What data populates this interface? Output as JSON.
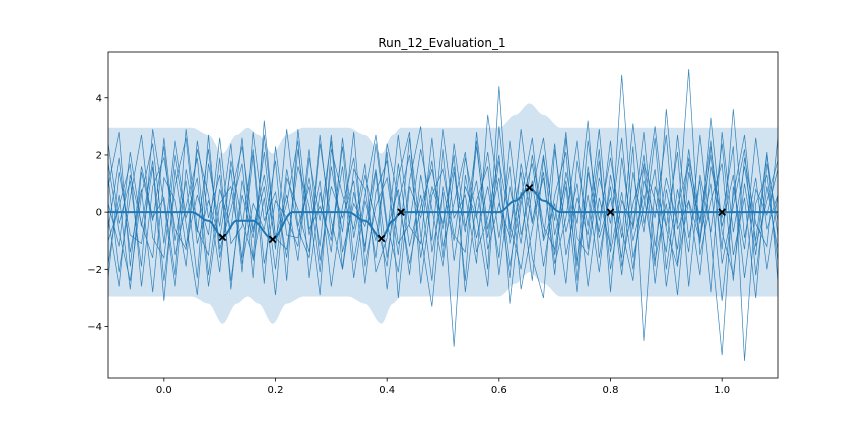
{
  "chart_data": {
    "type": "line",
    "title": "Run_12_Evaluation_1",
    "xlabel": "",
    "ylabel": "",
    "xlim": [
      -0.1,
      1.1
    ],
    "ylim": [
      -5.8,
      5.6
    ],
    "grid": false,
    "legend": "none",
    "x_ticks": [
      "0.0",
      "0.2",
      "0.4",
      "0.6",
      "0.8",
      "1.0"
    ],
    "y_ticks": [
      "4",
      "2",
      "0",
      "−2",
      "−4"
    ],
    "colors": {
      "mean": "#1f77b4",
      "samples": "#1f77b4",
      "band": "#c6dbec",
      "observations": "#000000"
    },
    "observations": [
      {
        "x": 0.105,
        "y": -0.88
      },
      {
        "x": 0.195,
        "y": -0.95
      },
      {
        "x": 0.39,
        "y": -0.92
      },
      {
        "x": 0.425,
        "y": 0.0
      },
      {
        "x": 0.655,
        "y": 0.85
      },
      {
        "x": 0.8,
        "y": 0.0
      },
      {
        "x": 1.0,
        "y": 0.0
      }
    ],
    "mean": {
      "x": [
        -0.1,
        0.05,
        0.08,
        0.105,
        0.13,
        0.16,
        0.195,
        0.23,
        0.33,
        0.36,
        0.39,
        0.41,
        0.425,
        0.6,
        0.63,
        0.655,
        0.68,
        0.71,
        1.1
      ],
      "y": [
        0.0,
        0.0,
        -0.3,
        -0.88,
        -0.3,
        -0.3,
        -0.95,
        0.0,
        0.0,
        -0.3,
        -0.92,
        -0.3,
        0.0,
        0.0,
        0.4,
        0.85,
        0.4,
        0.0,
        0.0
      ]
    },
    "confidence_band": {
      "x": [
        -0.1,
        0.05,
        0.08,
        0.105,
        0.13,
        0.15,
        0.17,
        0.195,
        0.22,
        0.25,
        0.33,
        0.36,
        0.39,
        0.41,
        0.425,
        0.44,
        0.6,
        0.63,
        0.655,
        0.68,
        0.71,
        1.1
      ],
      "upper": [
        2.95,
        2.95,
        2.7,
        2.05,
        2.7,
        2.95,
        2.7,
        2.05,
        2.7,
        2.95,
        2.95,
        2.7,
        2.05,
        2.7,
        2.95,
        2.95,
        2.95,
        3.4,
        3.8,
        3.4,
        2.95,
        2.95
      ],
      "lower": [
        -2.95,
        -2.95,
        -3.2,
        -3.9,
        -3.2,
        -2.95,
        -3.2,
        -3.9,
        -3.2,
        -2.95,
        -2.95,
        -3.2,
        -3.9,
        -3.2,
        -2.95,
        -2.95,
        -2.95,
        -2.5,
        -2.1,
        -2.5,
        -2.95,
        -2.95
      ]
    },
    "samples_note_visible": false,
    "sample_count": 10,
    "sample_x_start": -0.1,
    "sample_x_step": 0.02,
    "sample_series": [
      [
        0.3,
        -1.2,
        2.1,
        -0.5,
        1.8,
        -2.4,
        0.9,
        2.6,
        -1.1,
        0.4,
        -0.9,
        1.5,
        -2.1,
        2.8,
        -0.3,
        0.7,
        -1.6,
        2.2,
        -0.8,
        1.1,
        -2.6,
        0.2,
        1.9,
        -1.4,
        2.4,
        -0.6,
        0.8,
        -2.2,
        1.3,
        -1.0,
        2.9,
        -0.2,
        0.6,
        -1.8,
        3.4,
        0.5,
        -2.3,
        1.7,
        -0.4,
        2.0,
        -1.5,
        0.9,
        -2.8,
        1.4,
        -0.7,
        2.5,
        -1.9,
        0.3,
        1.6,
        -2.5,
        0.8,
        -1.3,
        2.2,
        -0.9,
        1.0,
        -3.1,
        0.6,
        2.7,
        -1.2,
        0.4,
        1.8
      ],
      [
        -1.8,
        0.6,
        -2.7,
        1.4,
        -0.3,
        2.3,
        -1.5,
        0.2,
        1.9,
        -2.2,
        0.8,
        -0.6,
        2.6,
        -1.7,
        0.5,
        -2.9,
        1.2,
        0.1,
        -1.4,
        2.7,
        -0.8,
        1.6,
        -2.3,
        0.4,
        -1.0,
        2.1,
        -3.0,
        0.9,
        -0.2,
        1.8,
        -1.6,
        2.4,
        -0.5,
        1.1,
        -2.0,
        4.4,
        -1.1,
        0.7,
        -2.4,
        1.9,
        -0.3,
        2.8,
        -1.7,
        0.6,
        -2.1,
        1.3,
        -0.9,
        3.1,
        -0.4,
        1.5,
        -2.6,
        0.2,
        1.7,
        -1.1,
        2.3,
        -0.7,
        -2.2,
        1.0,
        -1.5,
        2.0,
        -0.8
      ],
      [
        2.4,
        -0.4,
        1.1,
        -1.9,
        2.9,
        0.3,
        -2.6,
        1.5,
        -0.7,
        2.2,
        -1.3,
        0.1,
        1.7,
        -2.3,
        3.2,
        -0.9,
        0.6,
        -1.7,
        1.9,
        -0.3,
        2.5,
        -2.0,
        0.7,
        -1.2,
        1.4,
        -2.7,
        0.3,
        2.0,
        -1.6,
        0.9,
        -0.4,
        1.6,
        -2.4,
        2.8,
        -0.6,
        1.2,
        -1.9,
        0.5,
        2.6,
        -1.0,
        0.3,
        -2.5,
        1.8,
        -0.5,
        2.9,
        -1.4,
        0.7,
        -2.0,
        1.1,
        -0.2,
        2.7,
        -1.8,
        0.4,
        -1.0,
        3.3,
        -0.5,
        1.3,
        -2.3,
        0.8,
        -0.1,
        1.5
      ],
      [
        -0.6,
        1.9,
        -1.4,
        0.8,
        -2.8,
        1.2,
        0.4,
        -1.9,
        2.5,
        -0.2,
        1.3,
        -2.4,
        0.6,
        -0.9,
        2.1,
        -1.3,
        2.9,
        -0.5,
        0.9,
        -2.1,
        1.6,
        -0.7,
        2.8,
        -1.9,
        0.2,
        1.2,
        -1.5,
        2.6,
        -0.8,
        -3.3,
        0.9,
        -1.0,
        1.9,
        -0.1,
        -2.6,
        3.0,
        -0.6,
        1.4,
        -1.6,
        -3.0,
        2.2,
        -0.7,
        1.0,
        -2.6,
        0.5,
        -1.2,
        4.8,
        -0.6,
        2.0,
        -1.7,
        0.3,
        -2.9,
        1.4,
        -0.4,
        2.0,
        -1.3,
        3.6,
        -0.9,
        1.2,
        -2.0,
        0.6
      ],
      [
        1.2,
        -2.1,
        0.5,
        2.7,
        -0.9,
        -1.6,
        2.0,
        -0.4,
        -2.9,
        1.7,
        -0.5,
        2.4,
        -1.8,
        0.3,
        -0.6,
        1.8,
        -2.4,
        2.9,
        -0.6,
        0.2,
        -1.0,
        2.3,
        -1.7,
        0.6,
        2.7,
        -0.4,
        -2.1,
        1.1,
        3.0,
        -1.4,
        0.7,
        -4.7,
        1.3,
        -0.9,
        0.9,
        -1.6,
        2.5,
        -0.8,
        1.1,
        -1.9,
        0.6,
        2.1,
        -2.4,
        1.6,
        -0.9,
        0.5,
        -1.6,
        2.3,
        -4.5,
        0.9,
        -0.5,
        2.1,
        -2.6,
        1.3,
        -0.7,
        2.4,
        -1.5,
        0.5,
        -3.0,
        1.7,
        -0.3
      ],
      [
        -2.3,
        1.4,
        -0.8,
        -1.1,
        1.6,
        -3.1,
        1.5,
        -1.2,
        0.6,
        -0.8,
        2.6,
        -1.1,
        -0.5,
        2.2,
        -1.8,
        0.4,
        -0.2,
        -1.2,
        2.2,
        -1.7,
        0.9,
        -0.2,
        1.1,
        -2.5,
        0.7,
        1.8,
        -1.1,
        -0.4,
        2.2,
        0.1,
        -1.9,
        1.4,
        -0.7,
        2.5,
        -1.3,
        0.3,
        -0.9,
        2.9,
        -0.3,
        1.2,
        -1.8,
        -0.2,
        2.5,
        -1.3,
        1.8,
        -2.0,
        0.4,
        -0.5,
        2.8,
        -1.2,
        1.2,
        -0.4,
        5.0,
        -1.5,
        0.4,
        1.7,
        -2.4,
        1.9,
        -0.4,
        -1.2,
        2.6
      ],
      [
        0.9,
        2.8,
        -1.9,
        1.6,
        -0.2,
        0.5,
        -2.2,
        2.9,
        -0.6,
        -1.5,
        1.9,
        -2.7,
        1.1,
        -0.7,
        0.9,
        -2.0,
        1.5,
        -0.6,
        -1.6,
        2.4,
        -0.3,
        -2.0,
        1.5,
        0.8,
        -1.6,
        2.4,
        0.5,
        -1.8,
        0.2,
        1.5,
        -0.6,
        2.0,
        -2.8,
        0.4,
        1.6,
        -2.2,
        0.9,
        -1.1,
        2.0,
        -0.5,
        -1.3,
        1.4,
        -0.4,
        3.2,
        -1.6,
        0.9,
        -2.2,
        1.4,
        -0.7,
        2.6,
        -2.0,
        0.8,
        -1.4,
        2.7,
        -0.9,
        -5.0,
        0.9,
        -1.3,
        2.6,
        -0.6,
        0.6
      ],
      [
        -1.0,
        0.2,
        1.7,
        -2.6,
        0.9,
        1.9,
        -0.6,
        -1.3,
        2.2,
        0.6,
        -2.1,
        1.8,
        -0.3,
        -1.6,
        2.7,
        -0.9,
        -1.3,
        1.6,
        0.2,
        -2.9,
        2.2,
        0.6,
        -0.6,
        1.7,
        -2.1,
        -0.9,
        2.7,
        -0.5,
        -1.1,
        2.6,
        -1.2,
        0.3,
        2.1,
        -1.4,
        -0.2,
        2.0,
        -3.2,
        0.3,
        1.7,
        -0.9,
        2.4,
        -1.5,
        0.5,
        -0.8,
        2.2,
        -2.8,
        1.9,
        -1.0,
        0.6,
        -1.9,
        3.6,
        -0.6,
        0.4,
        -2.2,
        1.6,
        -0.2,
        2.3,
        -5.2,
        0.3,
        1.3,
        -1.7
      ],
      [
        1.7,
        -0.7,
        -2.4,
        0.6,
        2.4,
        -1.1,
        2.5,
        -0.2,
        1.2,
        -2.6,
        0.3,
        0.9,
        -1.6,
        2.0,
        -2.5,
        2.3,
        -0.8,
        -0.9,
        1.2,
        -1.2,
        2.7,
        -1.4,
        0.3,
        -0.5,
        1.5,
        -1.6,
        1.2,
        2.8,
        -2.5,
        0.6,
        1.5,
        -0.8,
        -1.4,
        2.3,
        -0.9,
        1.8,
        -0.4,
        -2.0,
        0.8,
        2.6,
        -0.8,
        1.1,
        -1.9,
        2.5,
        -0.3,
        1.9,
        -0.6,
        -2.4,
        1.7,
        0.4,
        -1.4,
        2.7,
        -0.9,
        1.1,
        -2.8,
        2.8,
        -0.7,
        1.6,
        -1.0,
        2.1,
        -2.4
      ],
      [
        -0.2,
        -2.6,
        1.3,
        -0.4,
        -1.6,
        2.6,
        -1.0,
        1.1,
        -2.3,
        2.7,
        -1.6,
        0.6,
        2.3,
        -0.6,
        1.3,
        -1.1,
        0.3,
        2.5,
        -2.3,
        0.7,
        -1.4,
        2.6,
        -0.9,
        1.3,
        -0.3,
        -1.9,
        1.7,
        -1.2,
        0.6,
        -2.4,
        2.2,
        -1.7,
        0.9,
        -0.2,
        2.1,
        -0.9,
        1.6,
        -2.7,
        -0.6,
        1.4,
        -2.2,
        2.6,
        -0.9,
        -1.5,
        1.2,
        -0.4,
        2.6,
        -1.6,
        0.2,
        3.0,
        -0.6,
        -1.9,
        1.9,
        -0.3,
        2.5,
        -1.8,
        0.2,
        2.2,
        -2.2,
        0.9,
        -1.3
      ]
    ]
  }
}
